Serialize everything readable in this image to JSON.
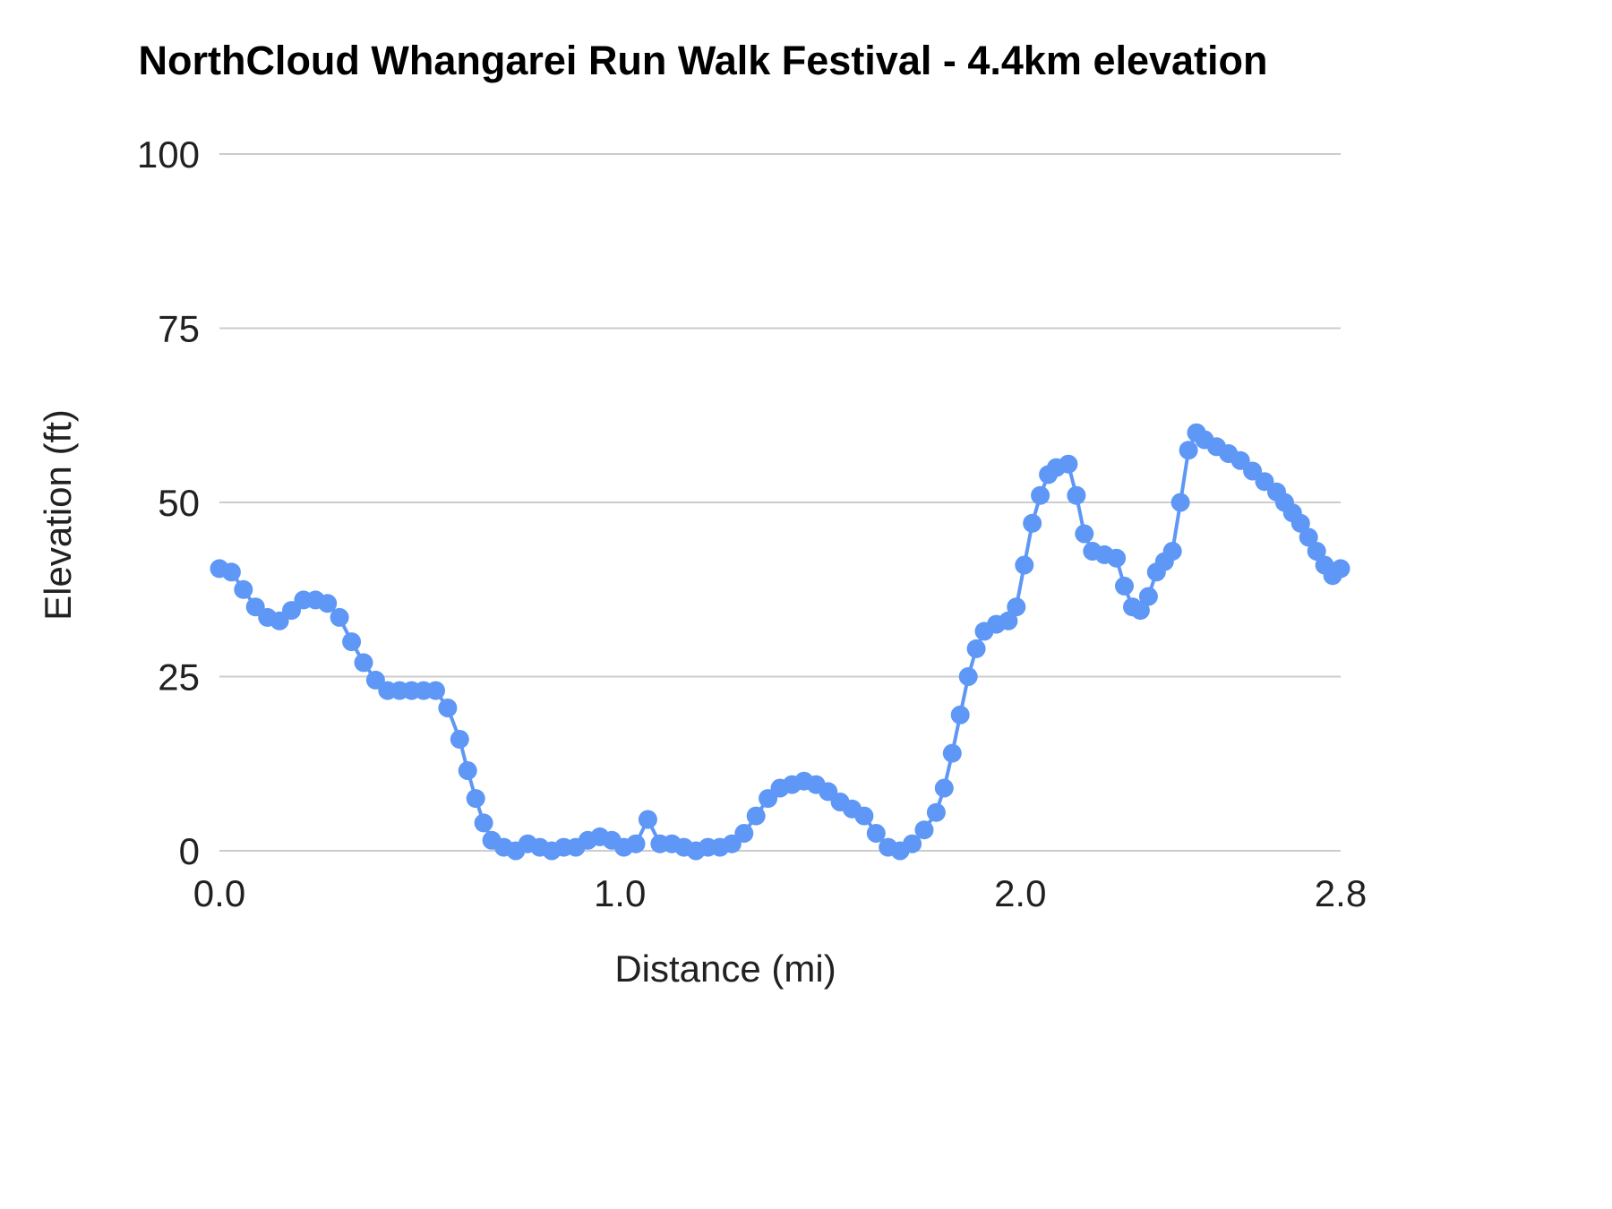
{
  "chart_data": {
    "type": "line",
    "title": "NorthCloud Whangarei Run Walk Festival - 4.4km elevation",
    "xlabel": "Distance (mi)",
    "ylabel": "Elevation (ft)",
    "xlim": [
      0,
      2.8
    ],
    "ylim": [
      0,
      100
    ],
    "grid": true,
    "legend": "none",
    "x_ticks": [
      {
        "value": 0.0,
        "label": "0.0"
      },
      {
        "value": 1.0,
        "label": "1.0"
      },
      {
        "value": 2.0,
        "label": "2.0"
      },
      {
        "value": 2.8,
        "label": "2.8"
      }
    ],
    "y_ticks": [
      {
        "value": 0,
        "label": "0"
      },
      {
        "value": 25,
        "label": "25"
      },
      {
        "value": 50,
        "label": "50"
      },
      {
        "value": 75,
        "label": "75"
      },
      {
        "value": 100,
        "label": "100"
      }
    ],
    "series": [
      {
        "name": "Elevation",
        "color": "#5e97f6",
        "points": [
          [
            0.0,
            40.5
          ],
          [
            0.03,
            40
          ],
          [
            0.06,
            37.5
          ],
          [
            0.09,
            35
          ],
          [
            0.12,
            33.5
          ],
          [
            0.15,
            33
          ],
          [
            0.18,
            34.5
          ],
          [
            0.21,
            36
          ],
          [
            0.24,
            36
          ],
          [
            0.27,
            35.5
          ],
          [
            0.3,
            33.5
          ],
          [
            0.33,
            30
          ],
          [
            0.36,
            27
          ],
          [
            0.39,
            24.5
          ],
          [
            0.42,
            23
          ],
          [
            0.45,
            23
          ],
          [
            0.48,
            23
          ],
          [
            0.51,
            23
          ],
          [
            0.54,
            23
          ],
          [
            0.57,
            20.5
          ],
          [
            0.6,
            16
          ],
          [
            0.62,
            11.5
          ],
          [
            0.64,
            7.5
          ],
          [
            0.66,
            4
          ],
          [
            0.68,
            1.5
          ],
          [
            0.71,
            0.5
          ],
          [
            0.74,
            0
          ],
          [
            0.77,
            1
          ],
          [
            0.8,
            0.5
          ],
          [
            0.83,
            0
          ],
          [
            0.86,
            0.5
          ],
          [
            0.89,
            0.5
          ],
          [
            0.92,
            1.5
          ],
          [
            0.95,
            2
          ],
          [
            0.98,
            1.5
          ],
          [
            1.01,
            0.5
          ],
          [
            1.04,
            1
          ],
          [
            1.07,
            4.5
          ],
          [
            1.1,
            1
          ],
          [
            1.13,
            1
          ],
          [
            1.16,
            0.5
          ],
          [
            1.19,
            0
          ],
          [
            1.22,
            0.5
          ],
          [
            1.25,
            0.5
          ],
          [
            1.28,
            1
          ],
          [
            1.31,
            2.5
          ],
          [
            1.34,
            5
          ],
          [
            1.37,
            7.5
          ],
          [
            1.4,
            9
          ],
          [
            1.43,
            9.5
          ],
          [
            1.46,
            10
          ],
          [
            1.49,
            9.5
          ],
          [
            1.52,
            8.5
          ],
          [
            1.55,
            7
          ],
          [
            1.58,
            6
          ],
          [
            1.61,
            5
          ],
          [
            1.64,
            2.5
          ],
          [
            1.67,
            0.5
          ],
          [
            1.7,
            0
          ],
          [
            1.73,
            1
          ],
          [
            1.76,
            3
          ],
          [
            1.79,
            5.5
          ],
          [
            1.81,
            9
          ],
          [
            1.83,
            14
          ],
          [
            1.85,
            19.5
          ],
          [
            1.87,
            25
          ],
          [
            1.89,
            29
          ],
          [
            1.91,
            31.5
          ],
          [
            1.94,
            32.5
          ],
          [
            1.97,
            33
          ],
          [
            1.99,
            35
          ],
          [
            2.01,
            41
          ],
          [
            2.03,
            47
          ],
          [
            2.05,
            51
          ],
          [
            2.07,
            54
          ],
          [
            2.09,
            55
          ],
          [
            2.12,
            55.5
          ],
          [
            2.14,
            51
          ],
          [
            2.16,
            45.5
          ],
          [
            2.18,
            43
          ],
          [
            2.21,
            42.5
          ],
          [
            2.24,
            42
          ],
          [
            2.26,
            38
          ],
          [
            2.28,
            35
          ],
          [
            2.3,
            34.5
          ],
          [
            2.32,
            36.5
          ],
          [
            2.34,
            40
          ],
          [
            2.36,
            41.5
          ],
          [
            2.38,
            43
          ],
          [
            2.4,
            50
          ],
          [
            2.42,
            57.5
          ],
          [
            2.44,
            60
          ],
          [
            2.46,
            59
          ],
          [
            2.49,
            58
          ],
          [
            2.52,
            57
          ],
          [
            2.55,
            56
          ],
          [
            2.58,
            54.5
          ],
          [
            2.61,
            53
          ],
          [
            2.64,
            51.5
          ],
          [
            2.66,
            50
          ],
          [
            2.68,
            48.5
          ],
          [
            2.7,
            47
          ],
          [
            2.72,
            45
          ],
          [
            2.74,
            43
          ],
          [
            2.76,
            41
          ],
          [
            2.78,
            39.5
          ],
          [
            2.8,
            40.5
          ]
        ]
      }
    ]
  },
  "colors": {
    "line": "#5e97f6",
    "grid": "#cccccc",
    "axis_text": "#212121",
    "title_text": "#000000",
    "background": "#ffffff"
  }
}
